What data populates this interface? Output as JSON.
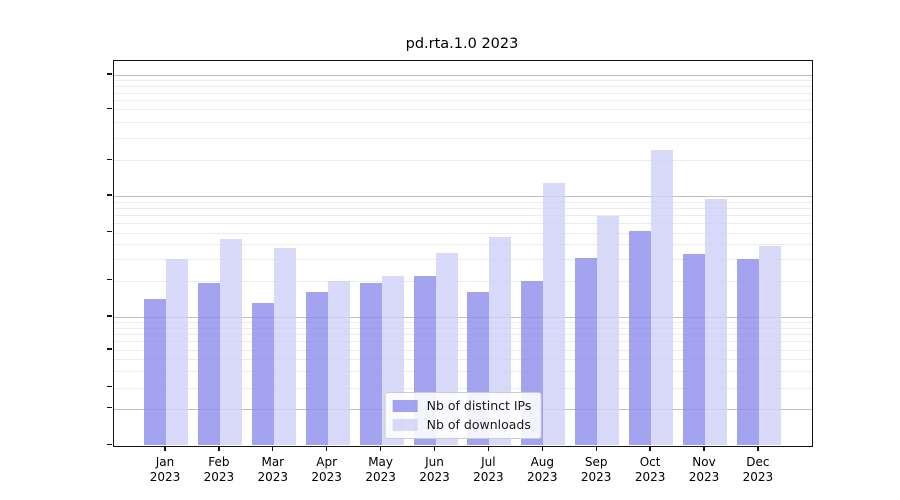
{
  "window": {
    "background": "#ffffff"
  },
  "chart_data": {
    "type": "bar",
    "title": "pd.rta.1.0 2023",
    "categories": [
      "Jan",
      "Feb",
      "Mar",
      "Apr",
      "May",
      "Jun",
      "Jul",
      "Aug",
      "Sep",
      "Oct",
      "Nov",
      "Dec"
    ],
    "year": "2023",
    "series": [
      {
        "name": "Nb of distinct IPs",
        "color": "#8c8cec",
        "values": [
          14,
          19,
          13,
          16,
          19,
          22,
          16,
          20,
          31,
          52,
          33,
          30
        ]
      },
      {
        "name": "Nb of downloads",
        "color": "#d0d0f7",
        "values": [
          30,
          44,
          37,
          20,
          22,
          34,
          46,
          128,
          68,
          240,
          95,
          39
        ]
      }
    ],
    "bar_alpha": 0.8,
    "xlabel": "",
    "ylabel": "",
    "yscale": "symlog",
    "ylim": [
      0,
      1300
    ],
    "y_ticks": [
      0,
      1,
      2,
      5,
      10,
      20,
      50,
      100,
      200,
      500,
      1000
    ],
    "grid": "major and minor horizontal gridlines",
    "major_grid_color": "#c0c0c0",
    "minor_grid_color": "#ececec",
    "legend_position": "lower center"
  }
}
